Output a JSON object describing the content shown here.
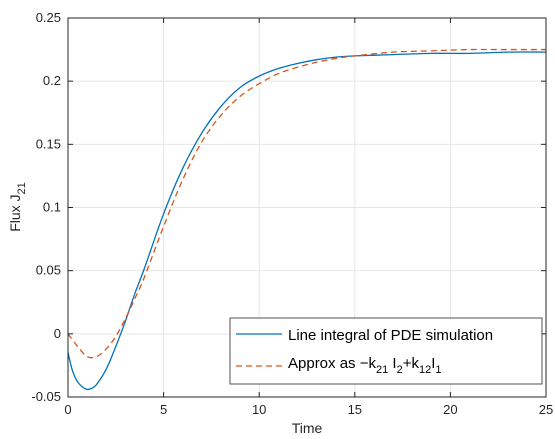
{
  "chart_data": {
    "type": "line",
    "xlabel": "Time",
    "ylabel": "Flux J",
    "ylabel_sub": "21",
    "xlim": [
      0,
      25
    ],
    "ylim": [
      -0.05,
      0.25
    ],
    "x_ticks": [
      0,
      5,
      10,
      15,
      20,
      25
    ],
    "y_ticks": [
      -0.05,
      0,
      0.05,
      0.1,
      0.15,
      0.2,
      0.25
    ],
    "x_tick_labels": [
      "0",
      "5",
      "10",
      "15",
      "20",
      "25"
    ],
    "y_tick_labels": [
      "-0.05",
      "0",
      "0.05",
      "0.1",
      "0.15",
      "0.2",
      "0.25"
    ],
    "grid": true,
    "legend_position": "bottom-right",
    "series": [
      {
        "name": "Line integral of PDE simulation",
        "color": "#0072BD",
        "style": "solid",
        "x": [
          0,
          0.25,
          0.5,
          0.75,
          1,
          1.25,
          1.5,
          2,
          2.5,
          3,
          3.5,
          4,
          5,
          6,
          7,
          8,
          9,
          10,
          11,
          12,
          13,
          14,
          15,
          17,
          19,
          21,
          23,
          25
        ],
        "y": [
          -0.015,
          -0.03,
          -0.038,
          -0.042,
          -0.044,
          -0.043,
          -0.04,
          -0.028,
          -0.01,
          0.01,
          0.032,
          0.052,
          0.095,
          0.131,
          0.159,
          0.18,
          0.195,
          0.204,
          0.21,
          0.214,
          0.217,
          0.219,
          0.22,
          0.221,
          0.222,
          0.222,
          0.223,
          0.223
        ]
      },
      {
        "name_parts": {
          "prefix": "Approx as −k",
          "sub1": "21",
          "mid1": " I",
          "sub2": "2",
          "mid2": "+k",
          "sub3": "12",
          "mid3": "I",
          "sub4": "1"
        },
        "color": "#D95319",
        "style": "dashed",
        "x": [
          0,
          0.5,
          1,
          1.5,
          2,
          2.5,
          3,
          3.5,
          4,
          5,
          6,
          7,
          8,
          9,
          10,
          11,
          12,
          13,
          14,
          15,
          17,
          19,
          21,
          23,
          25
        ],
        "y": [
          0,
          -0.01,
          -0.018,
          -0.018,
          -0.012,
          -0.002,
          0.012,
          0.028,
          0.045,
          0.085,
          0.122,
          0.152,
          0.173,
          0.188,
          0.198,
          0.206,
          0.211,
          0.215,
          0.218,
          0.22,
          0.223,
          0.224,
          0.225,
          0.225,
          0.225
        ]
      }
    ]
  }
}
